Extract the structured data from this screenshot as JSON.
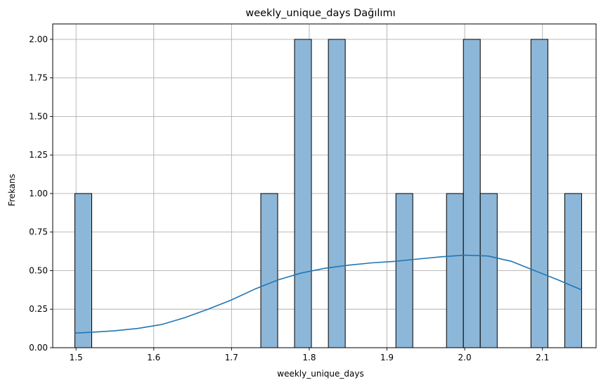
{
  "chart_data": {
    "type": "bar",
    "title": "weekly_unique_days Dağılımı",
    "xlabel": "weekly_unique_days",
    "ylabel": "Frekans",
    "xlim": [
      1.47,
      2.169
    ],
    "ylim": [
      0,
      2.1
    ],
    "grid": true,
    "bin_width": 0.0217,
    "x_ticks": [
      1.5,
      1.6,
      1.7,
      1.8,
      1.9,
      2.0,
      2.1
    ],
    "x_tick_labels": [
      "1.5",
      "1.6",
      "1.7",
      "1.8",
      "1.9",
      "2.0",
      "2.1"
    ],
    "y_ticks": [
      0,
      0.25,
      0.5,
      0.75,
      1.0,
      1.25,
      1.5,
      1.75,
      2.0
    ],
    "y_tick_labels": [
      "0.00",
      "0.25",
      "0.50",
      "0.75",
      "1.00",
      "1.25",
      "1.50",
      "1.75",
      "2.00"
    ],
    "bars": [
      {
        "x0": 1.4985,
        "x1": 1.5202,
        "value": 1
      },
      {
        "x0": 1.7377,
        "x1": 1.7594,
        "value": 1
      },
      {
        "x0": 1.7811,
        "x1": 1.8028,
        "value": 2
      },
      {
        "x0": 1.8246,
        "x1": 1.8463,
        "value": 2
      },
      {
        "x0": 1.9115,
        "x1": 1.9332,
        "value": 1
      },
      {
        "x0": 1.9766,
        "x1": 1.9983,
        "value": 1
      },
      {
        "x0": 1.9983,
        "x1": 2.02,
        "value": 2
      },
      {
        "x0": 2.02,
        "x1": 2.0418,
        "value": 1
      },
      {
        "x0": 2.0852,
        "x1": 2.107,
        "value": 2
      },
      {
        "x0": 2.1287,
        "x1": 2.1504,
        "value": 1
      }
    ],
    "kde": {
      "x": [
        1.4985,
        1.52,
        1.55,
        1.58,
        1.61,
        1.64,
        1.67,
        1.7,
        1.73,
        1.76,
        1.79,
        1.82,
        1.85,
        1.88,
        1.91,
        1.94,
        1.97,
        2.0,
        2.03,
        2.06,
        2.09,
        2.12,
        2.1504
      ],
      "y": [
        0.095,
        0.1,
        0.11,
        0.125,
        0.15,
        0.195,
        0.25,
        0.31,
        0.38,
        0.44,
        0.485,
        0.515,
        0.535,
        0.55,
        0.56,
        0.575,
        0.59,
        0.6,
        0.595,
        0.56,
        0.5,
        0.44,
        0.375
      ]
    },
    "colors": {
      "bar_fill": "#8db7d8",
      "bar_edge": "#000000",
      "kde_line": "#1f77b4",
      "grid": "#b0b0b0"
    }
  }
}
